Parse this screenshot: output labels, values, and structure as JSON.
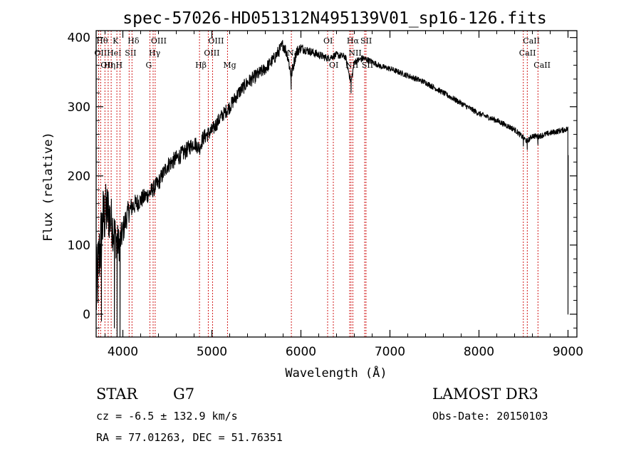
{
  "chart_data": {
    "type": "line",
    "title": "spec-57026-HD051312N495139V01_sp16-126.fits",
    "xlabel": "Wavelength (Å)",
    "ylabel": "Flux (relative)",
    "xlim": [
      3700,
      9100
    ],
    "ylim": [
      -33,
      410
    ],
    "xticks": [
      4000,
      5000,
      6000,
      7000,
      8000,
      9000
    ],
    "xtick_labels": [
      "4000",
      "5000",
      "6000",
      "7000",
      "8000",
      "9000"
    ],
    "yticks": [
      0,
      100,
      200,
      300,
      400
    ],
    "ytick_labels": [
      "0",
      "100",
      "200",
      "300",
      "400"
    ],
    "series": [
      {
        "name": "flux",
        "color": "#000000",
        "anchors_x": [
          3700,
          3740,
          3780,
          3830,
          3880,
          3920,
          3960,
          4000,
          4050,
          4100,
          4150,
          4200,
          4300,
          4400,
          4500,
          4600,
          4700,
          4800,
          4860,
          4900,
          5000,
          5100,
          5200,
          5300,
          5400,
          5500,
          5600,
          5700,
          5800,
          5850,
          5890,
          5950,
          6000,
          6100,
          6200,
          6300,
          6400,
          6500,
          6563,
          6600,
          6700,
          6800,
          6900,
          7000,
          7200,
          7400,
          7600,
          7800,
          8000,
          8200,
          8400,
          8498,
          8542,
          8600,
          8662,
          8800,
          8900,
          9000
        ],
        "anchors_y": [
          25,
          90,
          140,
          150,
          130,
          110,
          100,
          120,
          145,
          155,
          160,
          165,
          175,
          190,
          215,
          225,
          235,
          248,
          240,
          255,
          265,
          285,
          300,
          320,
          335,
          345,
          355,
          370,
          390,
          375,
          345,
          380,
          385,
          380,
          375,
          370,
          375,
          372,
          335,
          365,
          370,
          365,
          358,
          355,
          345,
          335,
          320,
          305,
          290,
          280,
          267,
          255,
          250,
          258,
          257,
          262,
          265,
          268
        ],
        "noise": [
          60,
          55,
          48,
          42,
          36,
          30,
          24,
          20,
          17,
          15,
          14,
          13,
          12,
          12,
          12,
          12,
          12,
          11,
          11,
          11,
          11,
          10,
          10,
          10,
          10,
          10,
          9,
          9,
          9,
          9,
          9,
          8,
          7,
          6,
          6,
          5,
          5,
          5,
          5,
          5,
          5,
          4,
          4,
          4,
          4,
          4,
          4,
          4,
          4,
          4,
          4,
          4,
          4,
          4,
          4,
          4,
          4,
          4
        ],
        "spikes": [
          {
            "x": 3935,
            "y": -33
          },
          {
            "x": 3968,
            "y": -33
          },
          {
            "x": 3905,
            "y": -20
          },
          {
            "x": 3760,
            "y": -10
          },
          {
            "x": 5890,
            "y": 325
          },
          {
            "x": 6563,
            "y": 320
          },
          {
            "x": 8498,
            "y": 243
          },
          {
            "x": 8542,
            "y": 238
          },
          {
            "x": 8662,
            "y": 245
          },
          {
            "x": 9000,
            "y": 0
          },
          {
            "x": 9002,
            "y": 230
          }
        ]
      }
    ],
    "line_markers": [
      {
        "wavelength": 3727,
        "label": "OII",
        "row": 2
      },
      {
        "wavelength": 3750,
        "label": "Hθ",
        "row": 1
      },
      {
        "wavelength": 3798,
        "label": "OII",
        "row": 3
      },
      {
        "wavelength": 3835,
        "label": "Hη",
        "row": 3
      },
      {
        "wavelength": 3869,
        "label": "HeI",
        "row": 2
      },
      {
        "wavelength": 3933,
        "label": "K",
        "row": 1
      },
      {
        "wavelength": 3968,
        "label": "H",
        "row": 3
      },
      {
        "wavelength": 4070,
        "label": "SII",
        "row": 2
      },
      {
        "wavelength": 4102,
        "label": "Hδ",
        "row": 1
      },
      {
        "wavelength": 4304,
        "label": "G",
        "row": 3
      },
      {
        "wavelength": 4340,
        "label": "Hγ",
        "row": 2
      },
      {
        "wavelength": 4363,
        "label": "OIII",
        "row": 1
      },
      {
        "wavelength": 4861,
        "label": "Hβ",
        "row": 3
      },
      {
        "wavelength": 4959,
        "label": "OIII",
        "row": 2
      },
      {
        "wavelength": 5007,
        "label": "OIII",
        "row": 1
      },
      {
        "wavelength": 5175,
        "label": "Mg",
        "row": 3
      },
      {
        "wavelength": 5893,
        "label": "Na",
        "row": 2
      },
      {
        "wavelength": 6300,
        "label": "OI",
        "row": 1
      },
      {
        "wavelength": 6364,
        "label": "OI",
        "row": 3
      },
      {
        "wavelength": 6548,
        "label": "NII",
        "row": 3
      },
      {
        "wavelength": 6563,
        "label": "Hα",
        "row": 1
      },
      {
        "wavelength": 6583,
        "label": "NII",
        "row": 2
      },
      {
        "wavelength": 6716,
        "label": "SII",
        "row": 1
      },
      {
        "wavelength": 6731,
        "label": "SII",
        "row": 3
      },
      {
        "wavelength": 8498,
        "label": "CaII",
        "row": 2
      },
      {
        "wavelength": 8542,
        "label": "CaII",
        "row": 1
      },
      {
        "wavelength": 8662,
        "label": "CaII",
        "row": 3
      }
    ],
    "marker_color": "#cc0000"
  },
  "info": {
    "object_class": "STAR",
    "subclass": "G7",
    "survey": "LAMOST DR3",
    "redshift": "cz = -6.5 ± 132.9 km/s",
    "obs_date": "Obs-Date: 20150103",
    "coords": "RA =  77.01263, DEC =  51.76351"
  }
}
